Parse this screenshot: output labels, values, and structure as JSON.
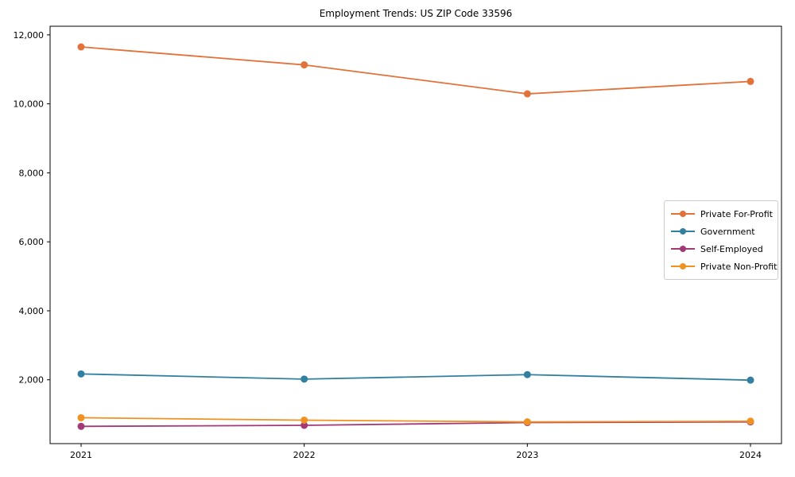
{
  "chart_data": {
    "type": "line",
    "title": "Employment Trends: US ZIP Code 33596",
    "x": [
      2021,
      2022,
      2023,
      2024
    ],
    "x_tick_labels": [
      "2021",
      "2022",
      "2023",
      "2024"
    ],
    "y_ticks": [
      2000,
      4000,
      6000,
      8000,
      10000,
      12000
    ],
    "y_tick_labels": [
      "2,000",
      "4,000",
      "6,000",
      "8,000",
      "10,000",
      "12,000"
    ],
    "ylim": [
      150,
      12250
    ],
    "grid": false,
    "legend_position": "center right",
    "series": [
      {
        "name": "Private For-Profit",
        "color": "#e2713a",
        "values": [
          11650,
          11130,
          10290,
          10650
        ]
      },
      {
        "name": "Government",
        "color": "#31809f",
        "values": [
          2170,
          2020,
          2150,
          1990
        ]
      },
      {
        "name": "Self-Employed",
        "color": "#a23a77",
        "values": [
          650,
          680,
          760,
          780
        ]
      },
      {
        "name": "Private Non-Profit",
        "color": "#ef9221",
        "values": [
          900,
          830,
          780,
          800
        ]
      }
    ]
  }
}
